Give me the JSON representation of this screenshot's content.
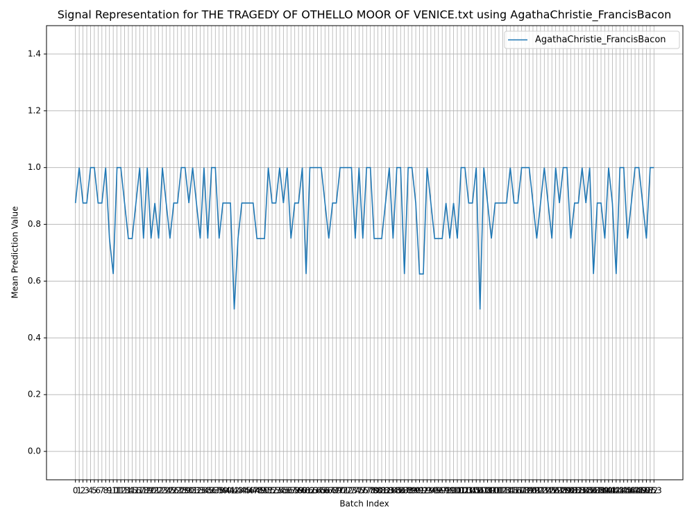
{
  "chart_data": {
    "type": "line",
    "title": "Signal Representation for THE TRAGEDY OF OTHELLO MOOR OF VENICE.txt using AgathaChristie_FrancisBacon",
    "x_label": "Batch Index",
    "y_label": "Mean Prediction Value",
    "x": [
      0,
      1,
      2,
      3,
      4,
      5,
      6,
      7,
      8,
      9,
      10,
      11,
      12,
      13,
      14,
      15,
      16,
      17,
      18,
      19,
      20,
      21,
      22,
      23,
      24,
      25,
      26,
      27,
      28,
      29,
      30,
      31,
      32,
      33,
      34,
      35,
      36,
      37,
      38,
      39,
      40,
      41,
      42,
      43,
      44,
      45,
      46,
      47,
      48,
      49,
      50,
      51,
      52,
      53,
      54,
      55,
      56,
      57,
      58,
      59,
      60,
      61,
      62,
      63,
      64,
      65,
      66,
      67,
      68,
      69,
      70,
      71,
      72,
      73,
      74,
      75,
      76,
      77,
      78,
      79,
      80,
      81,
      82,
      83,
      84,
      85,
      86,
      87,
      88,
      89,
      90,
      91,
      92,
      93,
      94,
      95,
      96,
      97,
      98,
      99,
      100,
      101,
      102,
      103,
      104,
      105,
      106,
      107,
      108,
      109,
      110,
      111,
      112,
      113,
      114,
      115,
      116,
      117,
      118,
      119,
      120,
      121,
      122,
      123,
      124,
      125,
      126,
      127,
      128,
      129,
      130,
      131,
      132,
      133,
      134,
      135,
      136,
      137,
      138,
      139,
      140,
      141,
      142,
      143,
      144,
      145,
      146,
      147,
      148,
      149,
      150,
      151,
      152,
      153
    ],
    "series": [
      {
        "name": "AgathaChristie_FrancisBacon",
        "color": "#1f77b4",
        "values": [
          0.875,
          1.0,
          0.875,
          0.875,
          1.0,
          1.0,
          0.875,
          0.875,
          1.0,
          0.75,
          0.625,
          1.0,
          1.0,
          0.875,
          0.75,
          0.75,
          0.875,
          1.0,
          0.75,
          1.0,
          0.75,
          0.875,
          0.75,
          1.0,
          0.875,
          0.75,
          0.875,
          0.875,
          1.0,
          1.0,
          0.875,
          1.0,
          0.875,
          0.75,
          1.0,
          0.75,
          1.0,
          1.0,
          0.75,
          0.875,
          0.875,
          0.875,
          0.5,
          0.75,
          0.875,
          0.875,
          0.875,
          0.875,
          0.75,
          0.75,
          0.75,
          1.0,
          0.875,
          0.875,
          1.0,
          0.875,
          1.0,
          0.75,
          0.875,
          0.875,
          1.0,
          0.625,
          1.0,
          1.0,
          1.0,
          1.0,
          0.875,
          0.75,
          0.875,
          0.875,
          1.0,
          1.0,
          1.0,
          1.0,
          0.75,
          1.0,
          0.75,
          1.0,
          1.0,
          0.75,
          0.75,
          0.75,
          0.875,
          1.0,
          0.75,
          1.0,
          1.0,
          0.625,
          1.0,
          1.0,
          0.875,
          0.625,
          0.625,
          1.0,
          0.875,
          0.75,
          0.75,
          0.75,
          0.875,
          0.75,
          0.875,
          0.75,
          1.0,
          1.0,
          0.875,
          0.875,
          1.0,
          0.5,
          1.0,
          0.875,
          0.75,
          0.875,
          0.875,
          0.875,
          0.875,
          1.0,
          0.875,
          0.875,
          1.0,
          1.0,
          1.0,
          0.875,
          0.75,
          0.875,
          1.0,
          0.875,
          0.75,
          1.0,
          0.875,
          1.0,
          1.0,
          0.75,
          0.875,
          0.875,
          1.0,
          0.875,
          1.0,
          0.625,
          0.875,
          0.875,
          0.75,
          1.0,
          0.875,
          0.625,
          1.0,
          1.0,
          0.75,
          0.875,
          1.0,
          1.0,
          0.875,
          0.75,
          1.0,
          1.0
        ]
      }
    ],
    "xlim": [
      -7.65,
      160.65
    ],
    "ylim": [
      -0.1,
      1.5
    ],
    "xticks": [
      0,
      1,
      2,
      3,
      4,
      5,
      6,
      7,
      8,
      9,
      10,
      11,
      12,
      13,
      14,
      15,
      16,
      17,
      18,
      19,
      20,
      21,
      22,
      23,
      24,
      25,
      26,
      27,
      28,
      29,
      30,
      31,
      32,
      33,
      34,
      35,
      36,
      37,
      38,
      39,
      40,
      41,
      42,
      43,
      44,
      45,
      46,
      47,
      48,
      49,
      50,
      51,
      52,
      53,
      54,
      55,
      56,
      57,
      58,
      59,
      60,
      61,
      62,
      63,
      64,
      65,
      66,
      67,
      68,
      69,
      70,
      71,
      72,
      73,
      74,
      75,
      76,
      77,
      78,
      79,
      80,
      81,
      82,
      83,
      84,
      85,
      86,
      87,
      88,
      89,
      90,
      91,
      92,
      93,
      94,
      95,
      96,
      97,
      98,
      99,
      100,
      101,
      102,
      103,
      104,
      105,
      106,
      107,
      108,
      109,
      110,
      111,
      112,
      113,
      114,
      115,
      116,
      117,
      118,
      119,
      120,
      121,
      122,
      123,
      124,
      125,
      126,
      127,
      128,
      129,
      130,
      131,
      132,
      133,
      134,
      135,
      136,
      137,
      138,
      139,
      140,
      141,
      142,
      143,
      144,
      145,
      146,
      147,
      148,
      149,
      150,
      151,
      152,
      153
    ],
    "yticks": [
      {
        "value": 0,
        "label": "0.0"
      },
      0.2,
      0.4,
      0.6,
      0.8,
      {
        "value": 1,
        "label": "1.0"
      },
      1.2,
      1.4
    ],
    "grid": true,
    "legend": "upper right"
  }
}
